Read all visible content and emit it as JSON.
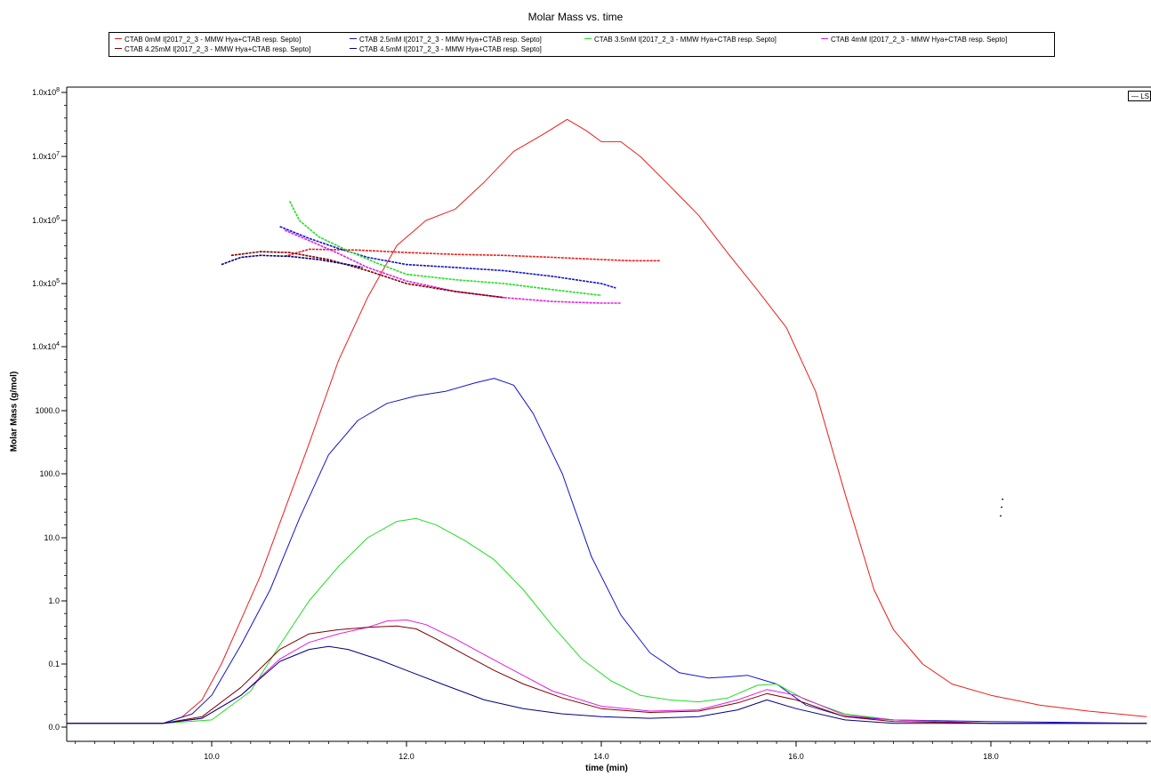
{
  "chart_data": {
    "type": "line",
    "title": "Molar Mass vs. time",
    "xlabel": "time (min)",
    "ylabel": "Molar Mass (g/mol)",
    "xlim": [
      8.5,
      19.6
    ],
    "y_scale": "log",
    "x_ticks": [
      "10.0",
      "12.0",
      "14.0",
      "16.0",
      "18.0"
    ],
    "x_tick_values": [
      10,
      12,
      14,
      16,
      18
    ],
    "y_ticks": [
      "0.0",
      "0.1",
      "1.0",
      "10.0",
      "100.0",
      "1000.0",
      "1.0x10^4",
      "1.0x10^5",
      "1.0x10^6",
      "1.0x10^7",
      "1.0x10^8"
    ],
    "grid": false,
    "legend_position": "top",
    "ls_label": "LS",
    "series": [
      {
        "name": "CTAB 0mM I[2017_2_3 - MMW Hya+CTAB resp. Septo]",
        "color": "#ee1c1c",
        "role": "ls",
        "x": [
          8.5,
          9.5,
          9.7,
          9.9,
          10.1,
          10.3,
          10.5,
          10.7,
          11.0,
          11.3,
          11.6,
          11.9,
          12.2,
          12.5,
          12.8,
          13.1,
          13.4,
          13.65,
          13.85,
          14.0,
          14.2,
          14.4,
          14.7,
          15.0,
          15.3,
          15.6,
          15.9,
          16.2,
          16.5,
          16.8,
          17.0,
          17.3,
          17.6,
          18.0,
          18.5,
          19.0,
          19.6
        ],
        "y": [
          0.022,
          0.022,
          0.026,
          0.04,
          0.1,
          0.5,
          2.5,
          17,
          300,
          6000,
          60000,
          400000,
          1000000,
          1500000,
          4000000,
          12000000,
          22000000,
          38000000,
          25000000,
          17000000,
          17000000,
          10000000,
          3500000,
          1200000,
          300000,
          80000,
          20000,
          2000,
          50,
          1.5,
          0.35,
          0.1,
          0.06,
          0.045,
          0.035,
          0.03,
          0.026
        ]
      },
      {
        "name": "CTAB 2.5mM I[2017_2_3 - MMW Hya+CTAB resp. Septo]",
        "color": "#1414c8",
        "role": "ls",
        "x": [
          8.5,
          9.5,
          9.8,
          10.0,
          10.3,
          10.6,
          10.9,
          11.2,
          11.5,
          11.8,
          12.1,
          12.4,
          12.7,
          12.9,
          13.1,
          13.3,
          13.6,
          13.9,
          14.2,
          14.5,
          14.8,
          15.1,
          15.3,
          15.5,
          15.8,
          16.1,
          16.5,
          17.0,
          18.0,
          19.6
        ],
        "y": [
          0.022,
          0.022,
          0.028,
          0.045,
          0.2,
          1.5,
          20,
          200,
          700,
          1300,
          1700,
          2000,
          2700,
          3200,
          2500,
          900,
          100,
          5,
          0.6,
          0.15,
          0.08,
          0.07,
          0.072,
          0.075,
          0.06,
          0.035,
          0.026,
          0.024,
          0.023,
          0.022
        ]
      },
      {
        "name": "CTAB 3.5mM I[2017_2_3 - MMW Hya+CTAB resp. Septo]",
        "color": "#22dd22",
        "role": "ls",
        "x": [
          8.5,
          9.5,
          10.0,
          10.4,
          10.7,
          11.0,
          11.3,
          11.6,
          11.9,
          12.1,
          12.3,
          12.6,
          12.9,
          13.2,
          13.5,
          13.8,
          14.1,
          14.4,
          14.7,
          15.0,
          15.3,
          15.6,
          15.8,
          16.1,
          16.5,
          17.0,
          18.0,
          19.6
        ],
        "y": [
          0.022,
          0.022,
          0.024,
          0.05,
          0.2,
          1,
          3.5,
          10,
          18,
          20,
          16,
          9,
          4.5,
          1.5,
          0.4,
          0.12,
          0.065,
          0.045,
          0.04,
          0.038,
          0.042,
          0.058,
          0.06,
          0.04,
          0.028,
          0.024,
          0.022,
          0.022
        ]
      },
      {
        "name": "CTAB 4mM I[2017_2_3 - MMW Hya+CTAB resp. Septo]",
        "color": "#e020e0",
        "role": "ls",
        "x": [
          8.5,
          9.5,
          9.9,
          10.3,
          10.7,
          11.0,
          11.3,
          11.6,
          11.8,
          12.0,
          12.2,
          12.5,
          12.8,
          13.1,
          13.5,
          14.0,
          14.5,
          15.0,
          15.4,
          15.7,
          16.0,
          16.5,
          17.0,
          18.0,
          19.6
        ],
        "y": [
          0.022,
          0.022,
          0.025,
          0.045,
          0.12,
          0.22,
          0.3,
          0.38,
          0.48,
          0.5,
          0.42,
          0.25,
          0.14,
          0.085,
          0.05,
          0.034,
          0.03,
          0.031,
          0.04,
          0.052,
          0.045,
          0.027,
          0.024,
          0.022,
          0.022
        ]
      },
      {
        "name": "CTAB 4.25mM I[2017_2_3 - MMW Hya+CTAB resp. Septo]",
        "color": "#800000",
        "role": "ls",
        "x": [
          8.5,
          9.5,
          9.9,
          10.3,
          10.7,
          11.0,
          11.3,
          11.6,
          11.9,
          12.1,
          12.3,
          12.6,
          12.9,
          13.2,
          13.6,
          14.0,
          14.5,
          15.0,
          15.4,
          15.7,
          16.0,
          16.5,
          17.0,
          18.0,
          19.6
        ],
        "y": [
          0.022,
          0.022,
          0.026,
          0.055,
          0.17,
          0.3,
          0.35,
          0.38,
          0.4,
          0.36,
          0.25,
          0.14,
          0.085,
          0.06,
          0.042,
          0.032,
          0.029,
          0.03,
          0.037,
          0.047,
          0.04,
          0.026,
          0.023,
          0.022,
          0.022
        ]
      },
      {
        "name": "CTAB 4.5mM I[2017_2_3 - MMW Hya+CTAB resp. Septo]",
        "color": "#000080",
        "role": "ls",
        "x": [
          8.5,
          9.5,
          9.9,
          10.3,
          10.7,
          11.0,
          11.2,
          11.4,
          11.7,
          12.0,
          12.4,
          12.8,
          13.2,
          13.6,
          14.0,
          14.5,
          15.0,
          15.4,
          15.7,
          16.0,
          16.5,
          17.0,
          18.0,
          19.6
        ],
        "y": [
          0.022,
          0.022,
          0.025,
          0.045,
          0.11,
          0.17,
          0.19,
          0.17,
          0.12,
          0.085,
          0.058,
          0.04,
          0.032,
          0.028,
          0.026,
          0.025,
          0.026,
          0.031,
          0.04,
          0.032,
          0.024,
          0.022,
          0.022,
          0.022
        ]
      },
      {
        "name": "CTAB 0mM I[2017_2_3 - MMW Hya+CTAB resp. Septo]",
        "color": "#ee1c1c",
        "role": "molar-mass",
        "x": [
          10.75,
          11.0,
          11.5,
          12.0,
          12.5,
          13.0,
          13.5,
          14.0,
          14.3,
          14.6
        ],
        "y": [
          270000,
          350000,
          340000,
          310000,
          290000,
          280000,
          260000,
          240000,
          230000,
          230000
        ]
      },
      {
        "name": "CTAB 2.5mM I[2017_2_3 - MMW Hya+CTAB resp. Septo]",
        "color": "#1414c8",
        "role": "molar-mass",
        "x": [
          10.7,
          11.0,
          11.3,
          11.6,
          12.0,
          12.5,
          13.0,
          13.5,
          14.0,
          14.15
        ],
        "y": [
          800000,
          520000,
          360000,
          260000,
          200000,
          180000,
          160000,
          130000,
          100000,
          85000
        ]
      },
      {
        "name": "CTAB 3.5mM I[2017_2_3 - MMW Hya+CTAB resp. Septo]",
        "color": "#22dd22",
        "role": "molar-mass",
        "x": [
          10.8,
          10.9,
          11.1,
          11.4,
          11.7,
          12.0,
          12.5,
          13.0,
          13.5,
          14.0
        ],
        "y": [
          2000000,
          1000000,
          550000,
          330000,
          210000,
          140000,
          115000,
          100000,
          80000,
          65000
        ]
      },
      {
        "name": "CTAB 4mM I[2017_2_3 - MMW Hya+CTAB resp. Septo]",
        "color": "#e020e0",
        "role": "molar-mass",
        "x": [
          10.75,
          11.0,
          11.3,
          11.6,
          12.0,
          12.5,
          13.0,
          13.5,
          14.0,
          14.2
        ],
        "y": [
          700000,
          480000,
          300000,
          180000,
          110000,
          75000,
          60000,
          52000,
          49000,
          49000
        ]
      },
      {
        "name": "CTAB 4.25mM I[2017_2_3 - MMW Hya+CTAB resp. Septo]",
        "color": "#800000",
        "role": "molar-mass",
        "x": [
          10.2,
          10.5,
          10.8,
          11.2,
          11.6,
          12.0,
          12.5,
          13.0
        ],
        "y": [
          280000,
          320000,
          310000,
          240000,
          160000,
          100000,
          75000,
          60000
        ]
      },
      {
        "name": "CTAB 4.5mM I[2017_2_3 - MMW Hya+CTAB resp. Septo]",
        "color": "#000080",
        "role": "molar-mass",
        "x": [
          10.1,
          10.3,
          10.5,
          10.8,
          11.1,
          11.4,
          11.55
        ],
        "y": [
          200000,
          260000,
          280000,
          270000,
          240000,
          200000,
          180000
        ]
      }
    ]
  },
  "legend": {
    "items": [
      {
        "label": "CTAB 0mM I[2017_2_3 - MMW Hya+CTAB resp. Septo]",
        "color": "#ee1c1c"
      },
      {
        "label": "CTAB 2.5mM I[2017_2_3 - MMW Hya+CTAB resp. Septo]",
        "color": "#1414c8"
      },
      {
        "label": "CTAB 3.5mM I[2017_2_3 - MMW Hya+CTAB resp. Septo]",
        "color": "#22dd22"
      },
      {
        "label": "CTAB 4mM I[2017_2_3 - MMW Hya+CTAB resp. Septo]",
        "color": "#e020e0"
      },
      {
        "label": "CTAB 4.25mM I[2017_2_3 - MMW Hya+CTAB resp. Septo]",
        "color": "#800000"
      },
      {
        "label": "CTAB 4.5mM I[2017_2_3 - MMW Hya+CTAB resp. Septo]",
        "color": "#000080"
      }
    ]
  }
}
